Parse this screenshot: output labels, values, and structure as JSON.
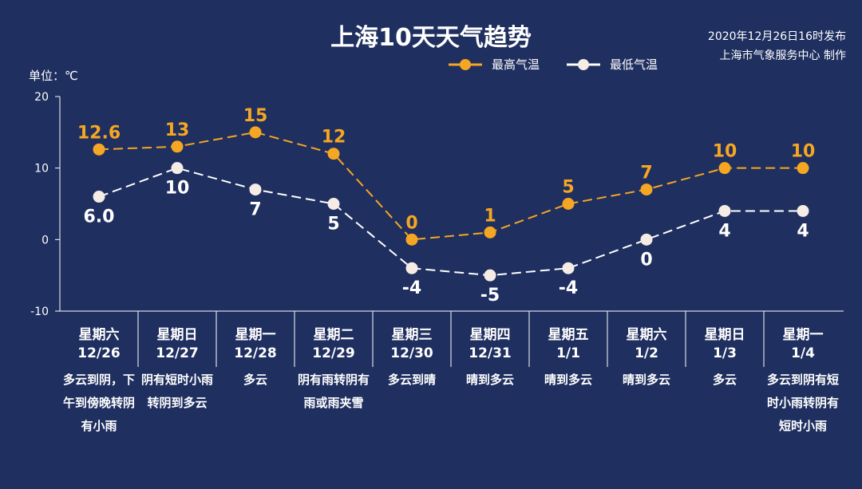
{
  "header": {
    "title": "上海10天天气趋势",
    "issue_time": "2020年12月26日16时发布",
    "issuer": "上海市气象服务中心 制作",
    "unit": "单位：℃"
  },
  "chart_data": {
    "type": "line",
    "title": "上海10天天气趋势",
    "ylabel": "单位：℃",
    "ylim": [
      -10,
      20
    ],
    "yticks": [
      -10,
      0,
      10,
      20
    ],
    "legend_position": "top",
    "categories": [
      "12/26",
      "12/27",
      "12/28",
      "12/29",
      "12/30",
      "12/31",
      "1/1",
      "1/2",
      "1/3",
      "1/4"
    ],
    "weekdays": [
      "星期六",
      "星期日",
      "星期一",
      "星期二",
      "星期三",
      "星期四",
      "星期五",
      "星期六",
      "星期日",
      "星期一"
    ],
    "descriptions": [
      "多云到阴，下午到傍晚转阴有小雨",
      "阴有短时小雨转阴到多云",
      "多云",
      "阴有雨转阴有雨或雨夹雪",
      "多云到晴",
      "晴到多云",
      "晴到多云",
      "晴到多云",
      "多云",
      "多云到阴有短时小雨转阴有短时小雨"
    ],
    "series": [
      {
        "name": "最高气温",
        "color": "#f5a623",
        "values": [
          12.6,
          13,
          15,
          12,
          0,
          1,
          5,
          7,
          10,
          10
        ],
        "labels": [
          "12.6",
          "13",
          "15",
          "12",
          "0",
          "1",
          "5",
          "7",
          "10",
          "10"
        ]
      },
      {
        "name": "最低气温",
        "color": "#ffffff",
        "values": [
          6.0,
          10,
          7,
          5,
          -4,
          -5,
          -4,
          0,
          4,
          4
        ],
        "labels": [
          "6.0",
          "10",
          "7",
          "5",
          "-4",
          "-5",
          "-4",
          "0",
          "4",
          "4"
        ]
      }
    ]
  }
}
